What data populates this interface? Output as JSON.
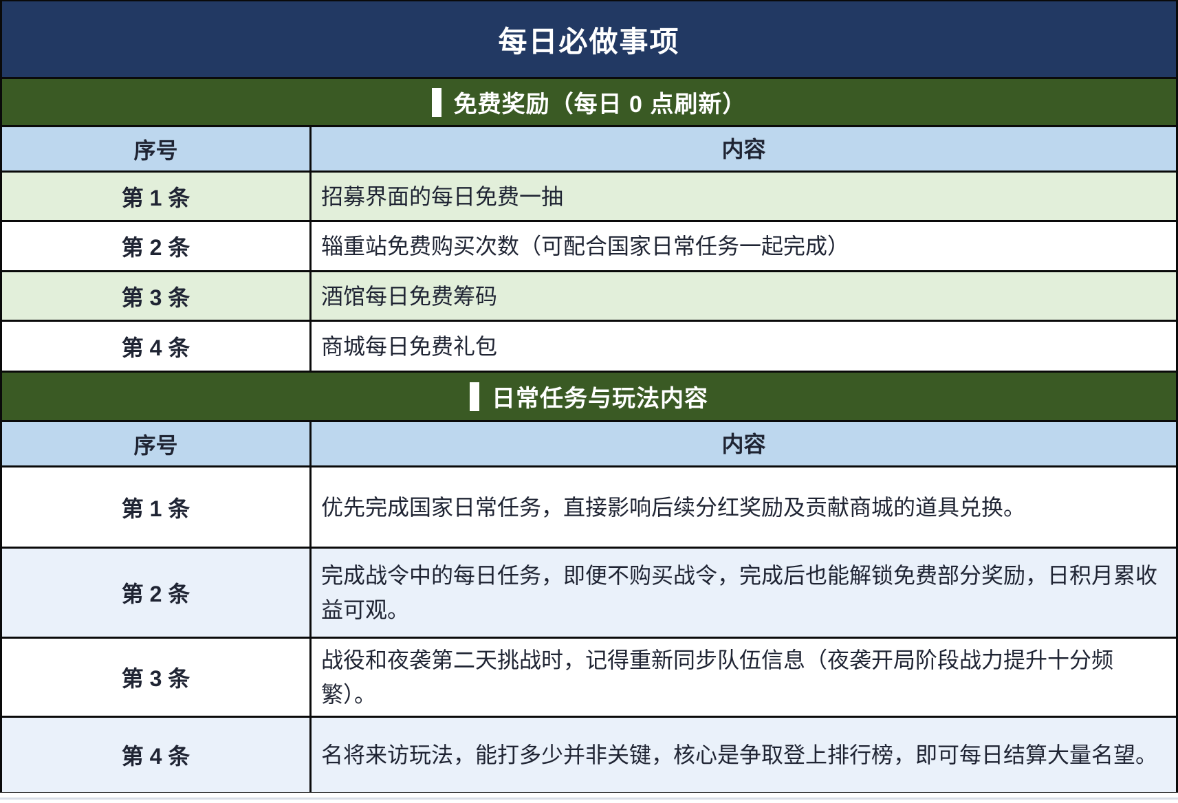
{
  "page": {
    "title": "每日必做事项"
  },
  "colors": {
    "title_bg": "#223963",
    "section_bg": "#3A5A24",
    "header_bg": "#BDD7EE",
    "row_green": "#E2EFDA",
    "row_blue": "#EAF1FA",
    "border": "#0A0A0A",
    "text": "#1F2433"
  },
  "sections": [
    {
      "header": "免费奖励（每日 0 点刷新）",
      "columns": {
        "no": "序号",
        "content": "内容"
      },
      "rows": [
        {
          "no": "第 1 条",
          "content": "招募界面的每日免费一抽"
        },
        {
          "no": "第 2 条",
          "content": "辎重站免费购买次数（可配合国家日常任务一起完成）"
        },
        {
          "no": "第 3 条",
          "content": "酒馆每日免费筹码"
        },
        {
          "no": "第 4 条",
          "content": "商城每日免费礼包"
        }
      ]
    },
    {
      "header": "日常任务与玩法内容",
      "columns": {
        "no": "序号",
        "content": "内容"
      },
      "rows": [
        {
          "no": "第 1 条",
          "content": "优先完成国家日常任务，直接影响后续分红奖励及贡献商城的道具兑换。"
        },
        {
          "no": "第 2 条",
          "content": "完成战令中的每日任务，即便不购买战令，完成后也能解锁免费部分奖励，日积月累收益可观。"
        },
        {
          "no": "第 3 条",
          "content": "战役和夜袭第二天挑战时，记得重新同步队伍信息（夜袭开局阶段战力提升十分频繁）。"
        },
        {
          "no": "第 4 条",
          "content": "名将来访玩法，能打多少并非关键，核心是争取登上排行榜，即可每日结算大量名望。"
        }
      ]
    }
  ]
}
